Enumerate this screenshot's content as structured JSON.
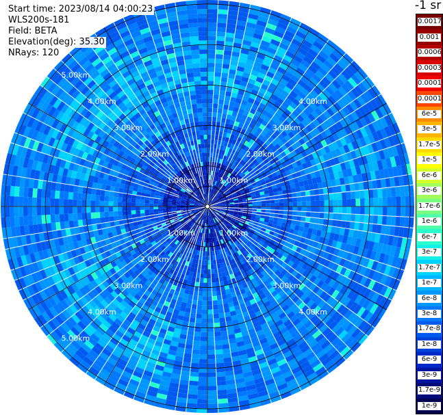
{
  "info": {
    "start_time": "Start time: 2023/08/14 04:00:23",
    "instrument": "WLS200s-181",
    "field": "Field: BETA",
    "elevation": "Elevation(deg): 35.30",
    "nrays": "NRays: 120"
  },
  "colorbar": {
    "unit_label": "-1 sr",
    "bins": [
      {
        "label": "0.0017",
        "color": "#7a0000"
      },
      {
        "label": "0.001",
        "color": "#960000"
      },
      {
        "label": "0.0006",
        "color": "#b40000"
      },
      {
        "label": "0.0003",
        "color": "#d60000"
      },
      {
        "label": "0.00017",
        "color": "#f00000"
      },
      {
        "label": "0.0001",
        "color": "#ff4600"
      },
      {
        "label": "6e-5",
        "color": "#ff8c00"
      },
      {
        "label": "3e-5",
        "color": "#ffb400"
      },
      {
        "label": "1.7e-5",
        "color": "#ffdc00"
      },
      {
        "label": "1e-5",
        "color": "#ffff00"
      },
      {
        "label": "6e-6",
        "color": "#d2ff28"
      },
      {
        "label": "3e-6",
        "color": "#a0ff5a"
      },
      {
        "label": "1.7e-6",
        "color": "#78ff82"
      },
      {
        "label": "1e-6",
        "color": "#50ffaa"
      },
      {
        "label": "6e-7",
        "color": "#28ffcc"
      },
      {
        "label": "3e-7",
        "color": "#14f0e6"
      },
      {
        "label": "1.7e-7",
        "color": "#00d2ff"
      },
      {
        "label": "1e-7",
        "color": "#00b4ff"
      },
      {
        "label": "6e-8",
        "color": "#0096ff"
      },
      {
        "label": "3e-8",
        "color": "#0078ff"
      },
      {
        "label": "1.7e-8",
        "color": "#005af0"
      },
      {
        "label": "1e-8",
        "color": "#0041dc"
      },
      {
        "label": "6e-9",
        "color": "#0028c8"
      },
      {
        "label": "3e-9",
        "color": "#0014a0"
      },
      {
        "label": "1.7e-9",
        "color": "#000a78"
      },
      {
        "label": "1e-9",
        "color": "#000050"
      }
    ]
  },
  "chart_data": {
    "type": "heatmap",
    "projection": "polar PPI",
    "nrays": 120,
    "range_rings_km": [
      1,
      2,
      3,
      4,
      5
    ],
    "ring_labels": [
      "1.00km",
      "2.00km",
      "3.00km",
      "4.00km",
      "5.00km"
    ],
    "spokes_deg": [
      0,
      30,
      60,
      90,
      120,
      150,
      180,
      210,
      240,
      270,
      300,
      330
    ],
    "max_range_km": 5.1,
    "field": "BETA",
    "dominant_range": [
      "3e-8",
      "1.7e-7"
    ]
  }
}
